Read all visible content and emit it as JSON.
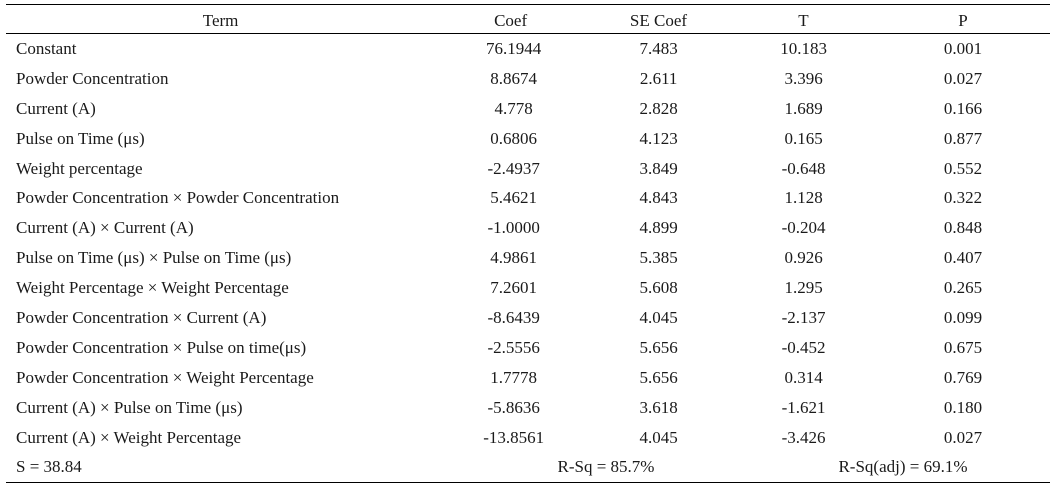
{
  "table": {
    "headers": {
      "term": "Term",
      "coef": "Coef",
      "se_coef": "SE Coef",
      "t": "T",
      "p": "P"
    },
    "rows": [
      {
        "term": "Constant",
        "coef": "76.1944",
        "se_coef": "7.483",
        "t": "10.183",
        "p": "0.001"
      },
      {
        "term": "Powder Concentration",
        "coef": "8.8674",
        "se_coef": "2.611",
        "t": "3.396",
        "p": "0.027"
      },
      {
        "term": "Current (A)",
        "coef": "4.778",
        "se_coef": "2.828",
        "t": "1.689",
        "p": "0.166"
      },
      {
        "term": "Pulse on Time (μs)",
        "coef": "0.6806",
        "se_coef": "4.123",
        "t": "0.165",
        "p": "0.877"
      },
      {
        "term": "Weight percentage",
        "coef": "-2.4937",
        "se_coef": "3.849",
        "t": "-0.648",
        "p": "0.552"
      },
      {
        "term": "Powder Concentration × Powder Concentration",
        "coef": "5.4621",
        "se_coef": "4.843",
        "t": "1.128",
        "p": "0.322"
      },
      {
        "term": "Current (A) × Current (A)",
        "coef": "-1.0000",
        "se_coef": "4.899",
        "t": "-0.204",
        "p": "0.848"
      },
      {
        "term": "Pulse on Time (μs) × Pulse on Time (μs)",
        "coef": "4.9861",
        "se_coef": "5.385",
        "t": "0.926",
        "p": "0.407"
      },
      {
        "term": "Weight Percentage × Weight Percentage",
        "coef": "7.2601",
        "se_coef": "5.608",
        "t": "1.295",
        "p": "0.265"
      },
      {
        "term": "Powder Concentration × Current (A)",
        "coef": "-8.6439",
        "se_coef": "4.045",
        "t": "-2.137",
        "p": "0.099"
      },
      {
        "term": "Powder Concentration × Pulse on time(μs)",
        "coef": "-2.5556",
        "se_coef": "5.656",
        "t": "-0.452",
        "p": "0.675"
      },
      {
        "term": "Powder Concentration × Weight Percentage",
        "coef": "1.7778",
        "se_coef": "5.656",
        "t": "0.314",
        "p": "0.769"
      },
      {
        "term": "Current (A) × Pulse on Time (μs)",
        "coef": "-5.8636",
        "se_coef": "3.618",
        "t": "-1.621",
        "p": "0.180"
      },
      {
        "term": "Current (A) × Weight Percentage",
        "coef": "-13.8561",
        "se_coef": "4.045",
        "t": "-3.426",
        "p": "0.027"
      }
    ],
    "summary": {
      "s": "S = 38.84",
      "r_sq": "R-Sq = 85.7%",
      "r_sq_adj": "R-Sq(adj) = 69.1%"
    }
  }
}
